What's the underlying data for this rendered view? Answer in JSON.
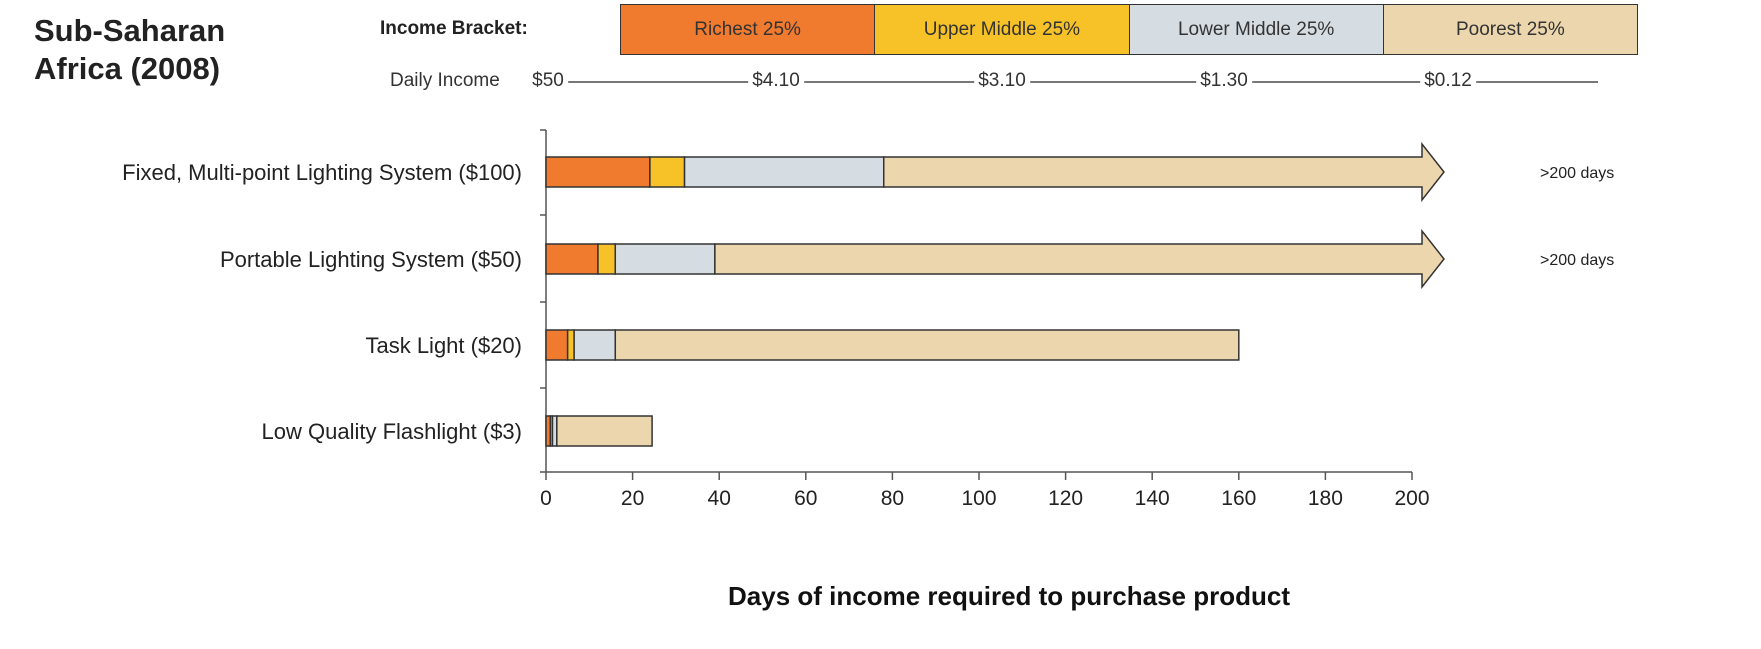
{
  "title": {
    "line1": "Sub-Saharan",
    "line2": "Africa (2008)"
  },
  "legend": {
    "label": "Income Bracket:",
    "brackets": [
      {
        "name": "Richest 25%",
        "color": "#f07a2e"
      },
      {
        "name": "Upper Middle 25%",
        "color": "#f7c228"
      },
      {
        "name": "Lower Middle 25%",
        "color": "#d5dde3"
      },
      {
        "name": "Poorest 25%",
        "color": "#ecd6ad"
      }
    ],
    "daily_income_label": "Daily Income",
    "daily_income_values": [
      "$50",
      "$4.10",
      "$3.10",
      "$1.30",
      "$0.12"
    ]
  },
  "chart_data": {
    "type": "bar",
    "orientation": "horizontal",
    "stacked": true,
    "categories": [
      "Fixed, Multi-point Lighting System ($100)",
      "Portable Lighting System ($50)",
      "Task Light ($20)",
      "Low Quality Flashlight ($3)"
    ],
    "series": [
      {
        "name": "Richest 25%",
        "color": "#f07a2e",
        "values": [
          24,
          12,
          5,
          1
        ]
      },
      {
        "name": "Upper Middle 25%",
        "color": "#f7c228",
        "values": [
          8,
          4,
          1.5,
          0.5
        ]
      },
      {
        "name": "Lower Middle 25%",
        "color": "#d5dde3",
        "values": [
          46,
          23,
          9.5,
          1
        ]
      },
      {
        "name": "Poorest 25%",
        "color": "#ecd6ad",
        "values": [
          122,
          161,
          144,
          22
        ]
      }
    ],
    "totals": [
      200,
      200,
      160,
      24.5
    ],
    "overflow": [
      true,
      true,
      false,
      false
    ],
    "overflow_label": ">200 days",
    "xlabel": "Days of income required to purchase product",
    "xlim": [
      0,
      200
    ],
    "xticks": [
      0,
      20,
      40,
      60,
      80,
      100,
      120,
      140,
      160,
      180,
      200
    ],
    "grid": false
  }
}
